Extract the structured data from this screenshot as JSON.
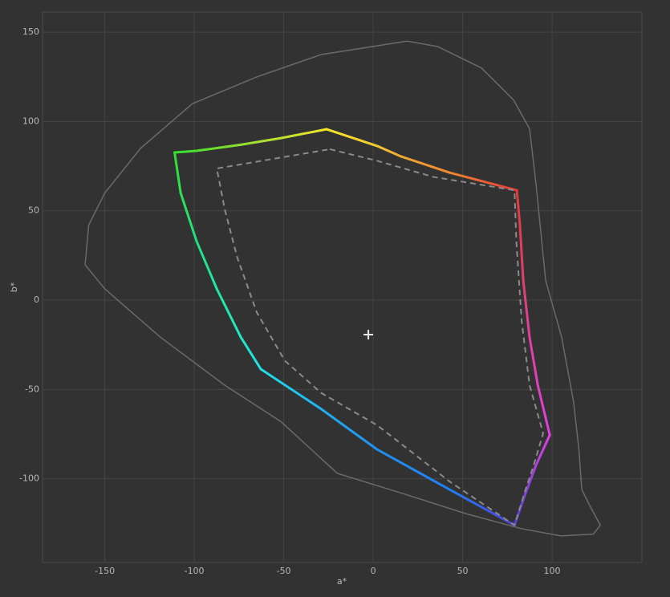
{
  "chart_data": {
    "type": "line",
    "x_label": "a*",
    "y_label": "b*",
    "xlim": [
      -184.8,
      150.2
    ],
    "ylim": [
      -146.9,
      161.3
    ],
    "xticks": [
      -150,
      -100,
      -50,
      0,
      50,
      100
    ],
    "yticks": [
      -100,
      -50,
      0,
      50,
      100,
      150
    ],
    "grid": true,
    "series": [
      {
        "style": "solid",
        "color": "#6a6a6a",
        "x": [
          19,
          36,
          60.5,
          78.5,
          87.4,
          91,
          96.4,
          105.4,
          112,
          115,
          116.6,
          121,
          127,
          123,
          105,
          83,
          51.6,
          15.7,
          -20,
          -51.6,
          -83,
          -119,
          -150,
          -161,
          -159,
          -150,
          -130,
          -101,
          -65,
          -29,
          19
        ],
        "values": [
          145,
          142,
          130,
          112,
          96,
          65,
          11,
          -21,
          -57,
          -84,
          -106,
          -115,
          -126,
          -131,
          -132,
          -128,
          -119.5,
          -108,
          -97,
          -68,
          -47.6,
          -20.7,
          6.3,
          19.8,
          42,
          60,
          85,
          110,
          125,
          137.5,
          145
        ]
      },
      {
        "style": "gradient",
        "x": [
          -26,
          2.2,
          15.7,
          42.6,
          80.3,
          82,
          83.9,
          87.4,
          92,
          98.7,
          91,
          85.2,
          79,
          42.6,
          2.2,
          -29,
          -62.8,
          -74,
          -87.4,
          -98.7,
          -107.6,
          -111,
          -98.7,
          -74,
          -51.6,
          -26
        ],
        "values": [
          95.7,
          86.3,
          80.4,
          71.4,
          61.5,
          42.2,
          10.8,
          -20.7,
          -47.6,
          -75.5,
          -92.5,
          -108,
          -126,
          -106,
          -83.6,
          -61,
          -38.6,
          -20.7,
          6.3,
          33,
          60,
          82.7,
          83.6,
          87,
          90.7,
          95.7
        ],
        "colors": [
          "#f4e62a",
          "#f2c830",
          "#f0a830",
          "#f08830",
          "#e83838",
          "#e83850",
          "#e04070",
          "#e040a0",
          "#e040c0",
          "#e040e0",
          "#b040e0",
          "#8040e0",
          "#5040e0",
          "#2080f0",
          "#2090f0",
          "#20b0f0",
          "#20e0e8",
          "#20e8c0",
          "#20e8a0",
          "#20e080",
          "#30e050",
          "#30e030",
          "#50e030",
          "#90e030",
          "#c0e030",
          "#f4e62a"
        ]
      },
      {
        "style": "dashed",
        "color": "#8a8a8a",
        "x": [
          -24.2,
          2.2,
          33.6,
          79,
          80,
          83,
          87.4,
          95,
          89.7,
          85.2,
          79,
          42.6,
          2.2,
          -29,
          -49.3,
          -65,
          -76,
          -83,
          -87.4,
          -24.2
        ],
        "values": [
          84.5,
          78,
          69,
          61.5,
          33,
          -11.7,
          -47.6,
          -74.6,
          -92.5,
          -106,
          -126,
          -101.5,
          -70,
          -52,
          -34,
          -7,
          24,
          51,
          73.7,
          84.5
        ]
      },
      {
        "style": "marker",
        "color": "#e8e8e8",
        "x": [
          -2.7
        ],
        "values": [
          -19.3
        ]
      }
    ]
  }
}
